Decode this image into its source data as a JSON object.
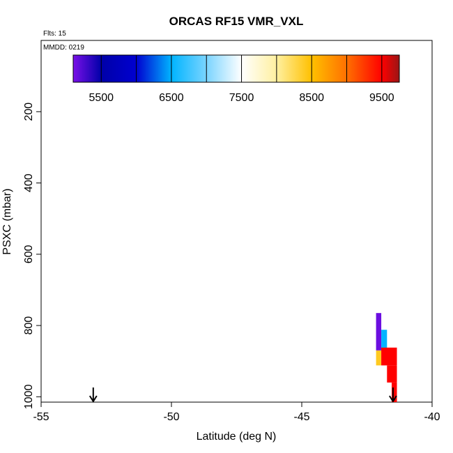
{
  "chart_data": {
    "type": "heatmap",
    "title": "ORCAS RF15 VMR_VXL",
    "corner_labels": {
      "flights": "Flts: 15",
      "date": "MMDD: 0219"
    },
    "xlabel": "Latitude (deg N)",
    "ylabel": "PSXC (mbar)",
    "xlim": [
      -55,
      -40
    ],
    "ylim": [
      1015,
      0
    ],
    "x_ticks": [
      -55,
      -50,
      -45,
      -40
    ],
    "y_ticks": [
      200,
      400,
      600,
      800,
      1000
    ],
    "colorbar": {
      "range": [
        5100,
        9750
      ],
      "ticks": [
        5500,
        6500,
        7500,
        8500,
        9500
      ],
      "divisions": [
        5500,
        6000,
        6500,
        7000,
        7500,
        8000,
        8500,
        9000,
        9500
      ],
      "stops": [
        {
          "v": 5100,
          "c": "#7a10e8"
        },
        {
          "v": 5500,
          "c": "#0000a8"
        },
        {
          "v": 6000,
          "c": "#0000d0"
        },
        {
          "v": 6500,
          "c": "#00b4ff"
        },
        {
          "v": 7000,
          "c": "#7ad4ff"
        },
        {
          "v": 7500,
          "c": "#ffffff"
        },
        {
          "v": 8000,
          "c": "#fff0a0"
        },
        {
          "v": 8500,
          "c": "#ffc000"
        },
        {
          "v": 9000,
          "c": "#ff7000"
        },
        {
          "v": 9500,
          "c": "#ff0000"
        },
        {
          "v": 9750,
          "c": "#9a1515"
        }
      ]
    },
    "cells": [
      {
        "lat0": -42.15,
        "lat1": -41.95,
        "p0": 765,
        "p1": 870,
        "value": 5150
      },
      {
        "lat0": -42.15,
        "lat1": -41.95,
        "p0": 870,
        "p1": 912,
        "value": 8400
      },
      {
        "lat0": -41.95,
        "lat1": -41.73,
        "p0": 812,
        "p1": 870,
        "value": 6500
      },
      {
        "lat0": -41.95,
        "lat1": -41.35,
        "p0": 862,
        "p1": 912,
        "value": 9500
      },
      {
        "lat0": -41.73,
        "lat1": -41.35,
        "p0": 912,
        "p1": 960,
        "value": 9500
      },
      {
        "lat0": -41.55,
        "lat1": -41.35,
        "p0": 960,
        "p1": 1015,
        "value": 9500
      }
    ],
    "arrow_latitudes": [
      -53.0,
      -41.5
    ]
  }
}
